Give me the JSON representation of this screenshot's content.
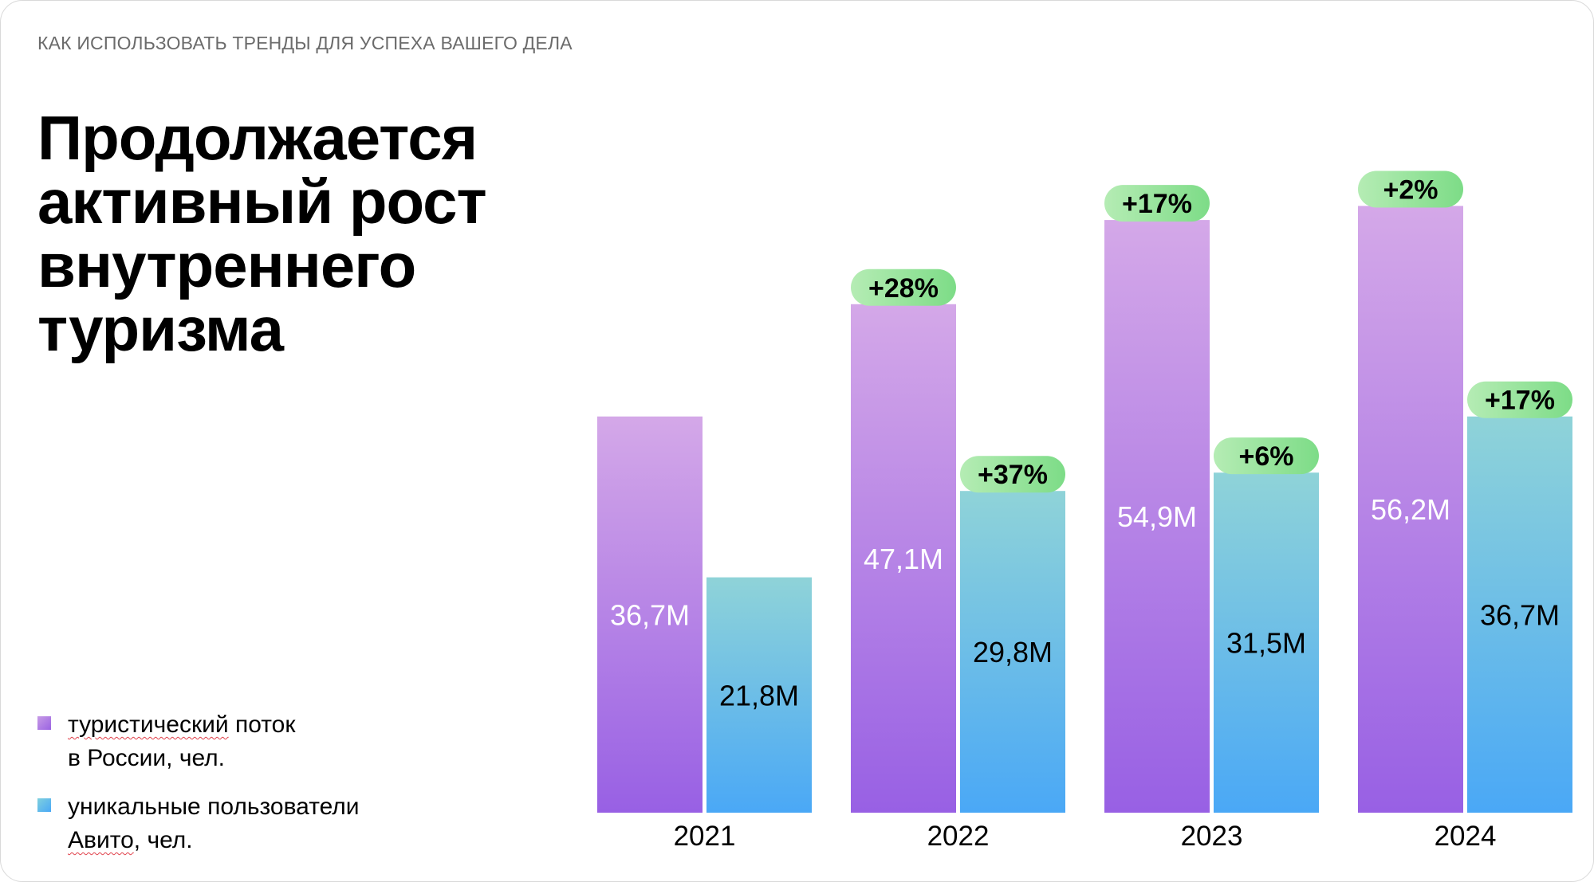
{
  "header": {
    "kicker": "КАК ИСПОЛЬЗОВАТЬ ТРЕНДЫ ДЛЯ УСПЕХА ВАШЕГО ДЕЛА",
    "title": "Продолжается активный рост внутреннего туризма"
  },
  "legend": {
    "items": [
      {
        "line1_word": "туристический",
        "line1_rest": " поток",
        "line2": "в России, чел.",
        "color": "#a277e6"
      },
      {
        "line1": "уникальные пользователи",
        "line2_word": "Авито",
        "line2_rest": ", чел.",
        "color": "#5ab6ec"
      }
    ]
  },
  "colors": {
    "purple_top": "#d4a8e8",
    "purple_bottom": "#9860e4",
    "blue_top": "#8fd3d8",
    "blue_bottom": "#4aa8f6",
    "badge_left": "#b5ecb4",
    "badge_right": "#7ddc87",
    "purple_label": "#ffffff",
    "blue_label": "#000000"
  },
  "chart_data": {
    "type": "bar",
    "categories": [
      "2021",
      "2022",
      "2023",
      "2024"
    ],
    "series": [
      {
        "name": "туристический поток в России, чел.",
        "values": [
          36.7,
          47.1,
          54.9,
          56.2
        ],
        "labels": [
          "36,7M",
          "47,1M",
          "54,9M",
          "56,2M"
        ],
        "growth": [
          "",
          "+28%",
          "+17%",
          "+2%"
        ]
      },
      {
        "name": "уникальные пользователи Авито, чел.",
        "values": [
          21.8,
          29.8,
          31.5,
          36.7
        ],
        "labels": [
          "21,8M",
          "29,8M",
          "31,5M",
          "36,7M"
        ],
        "growth": [
          "",
          "+37%",
          "+6%",
          "+17%"
        ]
      }
    ],
    "title": "Продолжается активный рост внутреннего туризма",
    "xlabel": "",
    "ylabel": "",
    "ylim": [
      0,
      60
    ],
    "grid": false,
    "legend_position": "bottom-left"
  }
}
